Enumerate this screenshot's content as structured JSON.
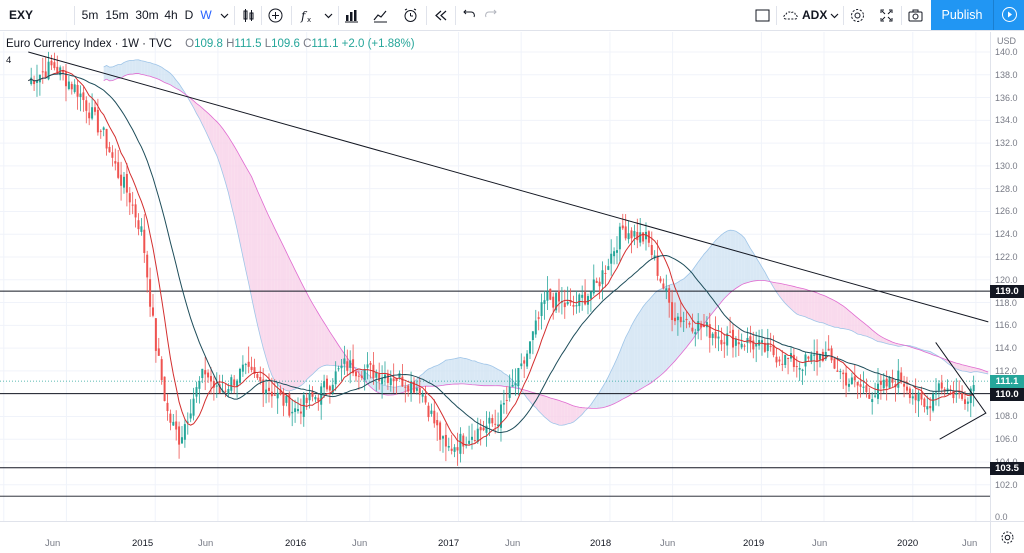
{
  "toolbar": {
    "symbol": "EXY",
    "intervals": [
      "5m",
      "15m",
      "30m",
      "4h",
      "D",
      "W"
    ],
    "active_interval": "W",
    "indicator_name": "ADX",
    "publish_label": "Publish",
    "icons": [
      "chevron-down-icon",
      "candles-icon",
      "add-compare-icon",
      "fx-indicators-icon",
      "bar-template-icon",
      "alert-icon",
      "replay-icon",
      "undo-icon",
      "redo-icon",
      "layout-icon",
      "cloud-icon",
      "settings-icon",
      "fullscreen-icon",
      "camera-icon",
      "play-icon"
    ]
  },
  "legend": {
    "title": "Euro Currency Index · 1W · TVC",
    "o_key": "O",
    "o_val": "109.8",
    "h_key": "H",
    "h_val": "111.5",
    "l_key": "L",
    "l_val": "109.6",
    "c_key": "C",
    "c_val": "111.1",
    "change": "+2.0 (+1.88%)"
  },
  "marker_label": "4",
  "price_axis": {
    "currency": "USD",
    "ticks": [
      "142.0",
      "140.0",
      "138.0",
      "136.0",
      "134.0",
      "132.0",
      "130.0",
      "128.0",
      "126.0",
      "124.0",
      "122.0",
      "120.0",
      "118.0",
      "116.0",
      "114.0",
      "112.0",
      "110.0",
      "108.0",
      "106.0",
      "104.0",
      "102.0",
      "0.0"
    ],
    "labels": [
      {
        "text": "119.0",
        "style": "dark"
      },
      {
        "text": "111.1",
        "style": "green"
      },
      {
        "text": "110.0",
        "style": "dark"
      },
      {
        "text": "103.5",
        "style": "dark"
      }
    ]
  },
  "time_axis": {
    "ticks": [
      {
        "text": "Jun",
        "type": "month"
      },
      {
        "text": "2015",
        "type": "year"
      },
      {
        "text": "Jun",
        "type": "month"
      },
      {
        "text": "2016",
        "type": "year"
      },
      {
        "text": "Jun",
        "type": "month"
      },
      {
        "text": "2017",
        "type": "year"
      },
      {
        "text": "Jun",
        "type": "month"
      },
      {
        "text": "2018",
        "type": "year"
      },
      {
        "text": "Jun",
        "type": "month"
      },
      {
        "text": "2019",
        "type": "year"
      },
      {
        "text": "Jun",
        "type": "month"
      },
      {
        "text": "2020",
        "type": "year"
      },
      {
        "text": "Jun",
        "type": "month"
      }
    ]
  },
  "chart_data": {
    "type": "candlestick",
    "symbol": "EXY",
    "ylim": [
      98.0,
      142.0
    ],
    "horizontal_levels": [
      119.0,
      110.0,
      103.5
    ],
    "series_close": [
      [
        "2014-03",
        137.5
      ],
      [
        "2014-05",
        138.8
      ],
      [
        "2014-07",
        136.5
      ],
      [
        "2014-09",
        132.5
      ],
      [
        "2014-10",
        129.5
      ],
      [
        "2014-11",
        127.2
      ],
      [
        "2014-12",
        124.0
      ],
      [
        "2015-01",
        114.5
      ],
      [
        "2015-02",
        108.0
      ],
      [
        "2015-03",
        106.0
      ],
      [
        "2015-04",
        109.5
      ],
      [
        "2015-05",
        112.0
      ],
      [
        "2015-06",
        110.0
      ],
      [
        "2015-08",
        112.0
      ],
      [
        "2015-10",
        110.5
      ],
      [
        "2015-12",
        108.5
      ],
      [
        "2016-02",
        110.0
      ],
      [
        "2016-04",
        112.5
      ],
      [
        "2016-06",
        112.0
      ],
      [
        "2016-08",
        111.5
      ],
      [
        "2016-10",
        110.5
      ],
      [
        "2016-12",
        105.0
      ],
      [
        "2017-02",
        106.5
      ],
      [
        "2017-04",
        107.5
      ],
      [
        "2017-06",
        112.0
      ],
      [
        "2017-08",
        118.5
      ],
      [
        "2017-10",
        117.5
      ],
      [
        "2017-12",
        119.5
      ],
      [
        "2018-02",
        124.5
      ],
      [
        "2018-04",
        123.5
      ],
      [
        "2018-06",
        117.0
      ],
      [
        "2018-08",
        116.0
      ],
      [
        "2018-10",
        115.0
      ],
      [
        "2018-12",
        114.5
      ],
      [
        "2019-02",
        113.5
      ],
      [
        "2019-04",
        112.5
      ],
      [
        "2019-06",
        113.5
      ],
      [
        "2019-08",
        111.0
      ],
      [
        "2019-10",
        110.0
      ],
      [
        "2019-12",
        111.5
      ],
      [
        "2020-02",
        108.5
      ],
      [
        "2020-03",
        111.0
      ],
      [
        "2020-05",
        109.5
      ],
      [
        "2020-06",
        111.1
      ]
    ],
    "trend_line": [
      [
        "2014-03",
        140.0
      ],
      [
        "2020-07",
        116.3
      ]
    ],
    "wedge": [
      [
        "2020-03",
        114.5
      ],
      [
        "2020-03",
        106.0
      ],
      [
        "2020-06",
        108.3
      ]
    ]
  },
  "colors": {
    "up": "#26a69a",
    "down": "#ef5350",
    "ma_fast": "#d32f2f",
    "ma_slow": "#1e4d5a",
    "cloud_bull": "#cfe2f3",
    "cloud_bear": "#f8d1e8",
    "cloud_edge_bull": "#9fc5e8",
    "cloud_edge_bear": "#e06bd0",
    "publish": "#2196f3"
  }
}
